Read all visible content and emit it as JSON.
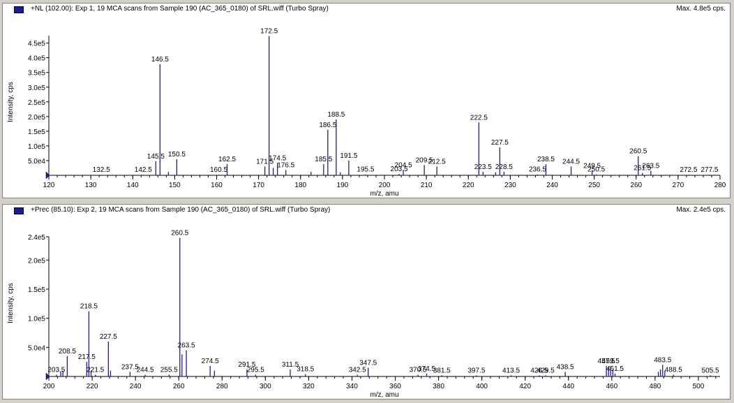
{
  "panels": [
    {
      "title": "+NL (102.00): Exp 1, 19 MCA scans from Sample 190 (AC_365_0180) of SRL.wiff (Turbo Spray)",
      "max_label": "Max. 4.8e5 cps."
    },
    {
      "title": "+Prec (85.10): Exp 2, 19 MCA scans from Sample 190 (AC_365_0180) of SRL.wiff (Turbo Spray)",
      "max_label": "Max. 2.4e5 cps."
    }
  ],
  "colors": {
    "bar": "#1a1aa8",
    "axis": "#000000"
  },
  "chart_data": [
    {
      "type": "bar",
      "title": "+NL (102.00): Exp 1, 19 MCA scans from Sample 190 (AC_365_0180) of SRL.wiff (Turbo Spray)",
      "xlabel": "m/z, amu",
      "ylabel": "Intensity, cps",
      "xlim": [
        120,
        280
      ],
      "ylim": [
        0,
        480000
      ],
      "xticks": [
        120,
        130,
        140,
        150,
        160,
        170,
        180,
        190,
        200,
        210,
        220,
        230,
        240,
        250,
        260,
        270,
        280
      ],
      "yticks": [
        50000,
        100000,
        150000,
        200000,
        250000,
        300000,
        350000,
        400000,
        450000
      ],
      "ytick_labels": [
        "5.0e4",
        "1.0e5",
        "1.5e5",
        "2.0e5",
        "2.5e5",
        "3.0e5",
        "3.5e5",
        "4.0e5",
        "4.5e5"
      ],
      "peaks": [
        {
          "x": 132.5,
          "y": 2000,
          "label": "132.5"
        },
        {
          "x": 142.5,
          "y": 2000,
          "label": "142.5"
        },
        {
          "x": 145.5,
          "y": 48000,
          "label": "145.5"
        },
        {
          "x": 146.5,
          "y": 378000,
          "label": "146.5"
        },
        {
          "x": 148.5,
          "y": 12000
        },
        {
          "x": 150.5,
          "y": 55000,
          "label": "150.5"
        },
        {
          "x": 160.5,
          "y": 2000,
          "label": "160.5"
        },
        {
          "x": 162.5,
          "y": 38000,
          "label": "162.5"
        },
        {
          "x": 171.5,
          "y": 30000,
          "label": "171.5"
        },
        {
          "x": 172.5,
          "y": 474000,
          "label": "172.5"
        },
        {
          "x": 173.5,
          "y": 25000
        },
        {
          "x": 174.5,
          "y": 42000,
          "label": "174.5"
        },
        {
          "x": 176.5,
          "y": 18000,
          "label": "176.5"
        },
        {
          "x": 182.5,
          "y": 12000
        },
        {
          "x": 185.5,
          "y": 38000,
          "label": "185.5"
        },
        {
          "x": 186.5,
          "y": 155000,
          "label": "186.5"
        },
        {
          "x": 188.5,
          "y": 190000,
          "label": "188.5"
        },
        {
          "x": 189.5,
          "y": 10000
        },
        {
          "x": 191.5,
          "y": 50000,
          "label": "191.5"
        },
        {
          "x": 195.5,
          "y": 3000,
          "label": "195.5"
        },
        {
          "x": 203.5,
          "y": 5000,
          "label": "203.5"
        },
        {
          "x": 204.5,
          "y": 18000,
          "label": "204.5"
        },
        {
          "x": 209.5,
          "y": 35000,
          "label": "209.5"
        },
        {
          "x": 212.5,
          "y": 30000,
          "label": "212.5"
        },
        {
          "x": 222.5,
          "y": 180000,
          "label": "222.5"
        },
        {
          "x": 223.5,
          "y": 12000,
          "label": "223.5"
        },
        {
          "x": 226.5,
          "y": 10000
        },
        {
          "x": 227.5,
          "y": 95000,
          "label": "227.5"
        },
        {
          "x": 228.5,
          "y": 12000,
          "label": "228.5"
        },
        {
          "x": 236.5,
          "y": 3000,
          "label": "236.5"
        },
        {
          "x": 238.5,
          "y": 38000,
          "label": "238.5"
        },
        {
          "x": 244.5,
          "y": 30000,
          "label": "244.5"
        },
        {
          "x": 249.5,
          "y": 15000,
          "label": "249.5"
        },
        {
          "x": 250.5,
          "y": 3000,
          "label": "250.5"
        },
        {
          "x": 260.5,
          "y": 65000,
          "label": "260.5"
        },
        {
          "x": 261.5,
          "y": 8000,
          "label": "261.5"
        },
        {
          "x": 263.5,
          "y": 15000,
          "label": "263.5"
        },
        {
          "x": 272.5,
          "y": 2000,
          "label": "272.5"
        },
        {
          "x": 277.5,
          "y": 2000,
          "label": "277.5"
        }
      ]
    },
    {
      "type": "bar",
      "title": "+Prec (85.10): Exp 2, 19 MCA scans from Sample 190 (AC_365_0180) of SRL.wiff (Turbo Spray)",
      "xlabel": "m/z, amu",
      "ylabel": "Intensity, cps",
      "xlim": [
        200,
        510
      ],
      "ylim": [
        0,
        240000
      ],
      "xticks": [
        200,
        220,
        240,
        260,
        280,
        300,
        320,
        340,
        360,
        380,
        400,
        420,
        440,
        460,
        480,
        500
      ],
      "yticks": [
        50000,
        100000,
        150000,
        200000,
        240000
      ],
      "ytick_labels": [
        "5.0e4",
        "1.0e5",
        "1.5e5",
        "2.0e5",
        "2.4e5"
      ],
      "peaks": [
        {
          "x": 203.5,
          "y": 3000,
          "label": "203.5"
        },
        {
          "x": 205.5,
          "y": 8000
        },
        {
          "x": 206.5,
          "y": 10000
        },
        {
          "x": 208.5,
          "y": 35000,
          "label": "208.5"
        },
        {
          "x": 217.5,
          "y": 25000,
          "label": "217.5"
        },
        {
          "x": 218.5,
          "y": 112000,
          "label": "218.5"
        },
        {
          "x": 219.5,
          "y": 10000
        },
        {
          "x": 221.5,
          "y": 3000,
          "label": "221.5"
        },
        {
          "x": 227.5,
          "y": 60000,
          "label": "227.5"
        },
        {
          "x": 228.5,
          "y": 10000
        },
        {
          "x": 237.5,
          "y": 8000,
          "label": "237.5"
        },
        {
          "x": 244.5,
          "y": 3000,
          "label": "244.5"
        },
        {
          "x": 255.5,
          "y": 3000,
          "label": "255.5"
        },
        {
          "x": 260.5,
          "y": 238000,
          "label": "260.5"
        },
        {
          "x": 261.5,
          "y": 38000
        },
        {
          "x": 263.5,
          "y": 45000,
          "label": "263.5"
        },
        {
          "x": 274.5,
          "y": 18000,
          "label": "274.5"
        },
        {
          "x": 276.5,
          "y": 10000
        },
        {
          "x": 291.5,
          "y": 12000,
          "label": "291.5"
        },
        {
          "x": 295.5,
          "y": 3000,
          "label": "295.5"
        },
        {
          "x": 311.5,
          "y": 12000,
          "label": "311.5"
        },
        {
          "x": 318.5,
          "y": 4000,
          "label": "318.5"
        },
        {
          "x": 342.5,
          "y": 3000,
          "label": "342.5"
        },
        {
          "x": 347.5,
          "y": 15000,
          "label": "347.5"
        },
        {
          "x": 370.5,
          "y": 3000,
          "label": "370.5"
        },
        {
          "x": 374.5,
          "y": 5000,
          "label": "374.5"
        },
        {
          "x": 381.5,
          "y": 2000,
          "label": "381.5"
        },
        {
          "x": 397.5,
          "y": 2000,
          "label": "397.5"
        },
        {
          "x": 413.5,
          "y": 2000,
          "label": "413.5"
        },
        {
          "x": 426.5,
          "y": 2000,
          "label": "426.5"
        },
        {
          "x": 429.5,
          "y": 2000,
          "label": "429.5"
        },
        {
          "x": 438.5,
          "y": 8000,
          "label": "438.5"
        },
        {
          "x": 457.5,
          "y": 18000,
          "label": "457.5"
        },
        {
          "x": 458.5,
          "y": 15000
        },
        {
          "x": 459.5,
          "y": 18000,
          "label": "459.5"
        },
        {
          "x": 460.5,
          "y": 12000
        },
        {
          "x": 461.5,
          "y": 5000,
          "label": "461.5"
        },
        {
          "x": 481.5,
          "y": 8000
        },
        {
          "x": 482.5,
          "y": 12000
        },
        {
          "x": 483.5,
          "y": 20000,
          "label": "483.5"
        },
        {
          "x": 484.5,
          "y": 10000
        },
        {
          "x": 488.5,
          "y": 3000,
          "label": "488.5"
        },
        {
          "x": 505.5,
          "y": 2000,
          "label": "505.5"
        }
      ]
    }
  ]
}
